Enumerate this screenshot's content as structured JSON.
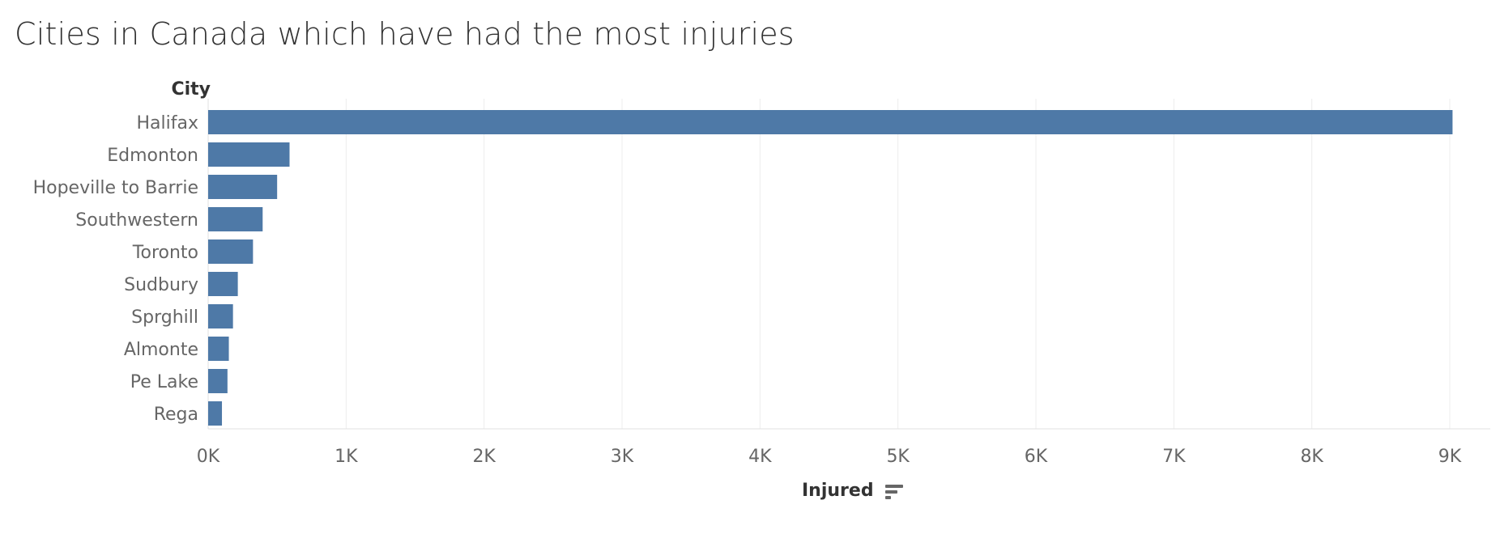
{
  "chart_data": {
    "type": "bar",
    "orientation": "horizontal",
    "title": "Cities in Canada which have had the most injuries",
    "row_header": "City",
    "xlabel": "Injured",
    "categories": [
      "Halifax",
      "Edmonton",
      "Hopeville to Barrie",
      "Southwestern",
      "Toronto",
      "Sudbury",
      "Sprghill",
      "Almonte",
      "Pe Lake",
      "Rega"
    ],
    "values": [
      9020,
      590,
      500,
      395,
      325,
      215,
      180,
      150,
      140,
      100
    ],
    "xlim": [
      0,
      9300
    ],
    "xticks": [
      0,
      1000,
      2000,
      3000,
      4000,
      5000,
      6000,
      7000,
      8000,
      9000
    ],
    "xtick_labels": [
      "0K",
      "1K",
      "2K",
      "3K",
      "4K",
      "5K",
      "6K",
      "7K",
      "8K",
      "9K"
    ],
    "grid": true,
    "bar_color": "#4e79a7",
    "sort_icon": "sort-descending-icon"
  }
}
